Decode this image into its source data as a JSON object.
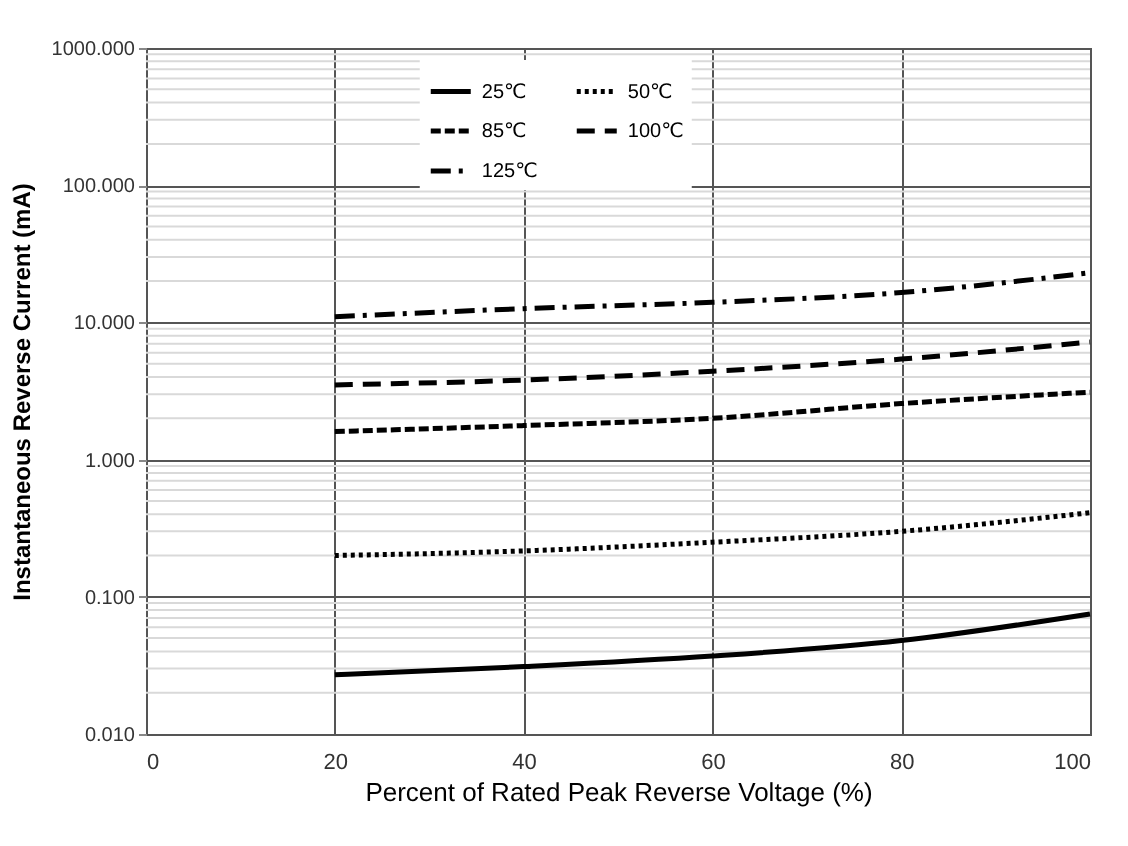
{
  "chart_data": {
    "type": "line",
    "xlabel": "Percent of  Rated Peak Reverse Voltage (%)",
    "ylabel": "Instantaneous Reverse Current (mA)",
    "x": [
      20,
      40,
      60,
      80,
      100
    ],
    "series": [
      {
        "name": "25℃",
        "color": "#000000",
        "line_style": "solid",
        "values": [
          0.027,
          0.031,
          0.037,
          0.048,
          0.075
        ]
      },
      {
        "name": "50℃",
        "color": "#000000",
        "line_style": "dotted",
        "values": [
          0.2,
          0.216,
          0.25,
          0.3,
          0.41
        ]
      },
      {
        "name": "85℃",
        "color": "#000000",
        "line_style": "dashed",
        "values": [
          1.6,
          1.77,
          2.0,
          2.56,
          3.1
        ]
      },
      {
        "name": "100℃",
        "color": "#000000",
        "line_style": "longdash",
        "values": [
          3.5,
          3.8,
          4.4,
          5.4,
          7.2
        ]
      },
      {
        "name": "125℃",
        "color": "#000000",
        "line_style": "dashdot",
        "values": [
          11,
          12.6,
          14,
          16.5,
          23
        ]
      }
    ],
    "xlim": [
      0,
      100
    ],
    "xticks": [
      0,
      20,
      40,
      60,
      80,
      100
    ],
    "ylim": [
      0.01,
      1000
    ],
    "yticks": [
      {
        "value": 0.01,
        "label": "0.010"
      },
      {
        "value": 0.1,
        "label": "0.100"
      },
      {
        "value": 1,
        "label": "1.000"
      },
      {
        "value": 10,
        "label": "10.000"
      },
      {
        "value": 100,
        "label": "100.000"
      },
      {
        "value": 1000,
        "label": "1000.000"
      }
    ],
    "log": "y",
    "grid": true,
    "legend": "top",
    "marker": "none"
  }
}
